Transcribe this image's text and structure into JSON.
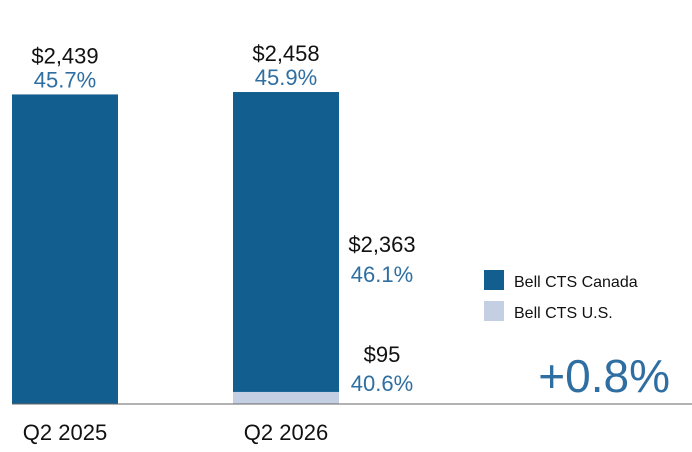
{
  "chart_data": {
    "type": "bar",
    "stacked": true,
    "categories": [
      "Q2 2025",
      "Q2 2026"
    ],
    "series": [
      {
        "name": "Bell CTS Canada",
        "values": [
          2439,
          2363
        ]
      },
      {
        "name": "Bell CTS U.S.",
        "values": [
          0,
          95
        ]
      }
    ],
    "totals": [
      {
        "value_label": "$2,439",
        "pct_label": "45.7%"
      },
      {
        "value_label": "$2,458",
        "pct_label": "45.9%"
      }
    ],
    "segment_labels": [
      {
        "category": "Q2 2026",
        "series": "Bell CTS Canada",
        "value_label": "$2,363",
        "pct_label": "46.1%"
      },
      {
        "category": "Q2 2026",
        "series": "Bell CTS U.S.",
        "value_label": "$95",
        "pct_label": "40.6%"
      }
    ],
    "legend": {
      "placement": "right",
      "items": [
        {
          "label": "Bell CTS Canada",
          "color": "#125e8e"
        },
        {
          "label": "Bell CTS U.S.",
          "color": "#c5cfe3"
        }
      ]
    },
    "change_label": "+0.8%",
    "colors": {
      "canada": "#125e8e",
      "us": "#c5cfe3",
      "pct_text": "#2f6ea1",
      "value_text": "#111111",
      "axis": "#666666"
    },
    "ylim": [
      0,
      2600
    ],
    "grid": false
  }
}
